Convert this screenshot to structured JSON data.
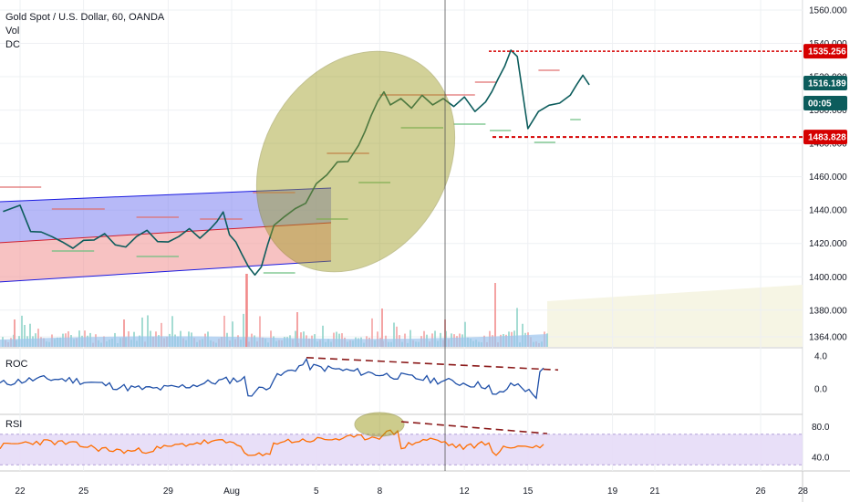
{
  "header": {
    "title": "Gold Spot / U.S. Dollar, 60, OANDA",
    "vol_label": "Vol",
    "dc_label": "DC"
  },
  "panes": {
    "roc_label": "ROC",
    "rsi_label": "RSI"
  },
  "price_tags": {
    "resistance": "1535.256",
    "current": "1516.189",
    "countdown": "00:05",
    "support": "1483.828"
  },
  "colors": {
    "price_line": "#0c5c5c",
    "resistance": "#d50000",
    "current_tag": "#0c5c5c",
    "roc_line": "#1e4fa8",
    "rsi_line": "#ff6d00",
    "channel_upper": "#7b7ff0",
    "channel_lower": "#f29a9a",
    "ellipse": "#9c9a1c"
  },
  "chart_data": [
    {
      "type": "line",
      "title": "Gold Spot / U.S. Dollar, 60, OANDA",
      "y_ticks": [
        1364,
        1380,
        1400,
        1420,
        1440,
        1460,
        1480,
        1500,
        1520,
        1540,
        1560
      ],
      "y_tick_labels": [
        "1364.000",
        "1380.000",
        "1400.000",
        "1420.000",
        "1440.000",
        "1460.000",
        "1480.000",
        "1500.000",
        "1520.000",
        "1540.000",
        "1560.000"
      ],
      "ylim": [
        1358,
        1566
      ],
      "x_ticks": [
        {
          "label": "22",
          "day": 0
        },
        {
          "label": "25",
          "day": 3
        },
        {
          "label": "29",
          "day": 7
        },
        {
          "label": "Aug",
          "day": 10
        },
        {
          "label": "5",
          "day": 14
        },
        {
          "label": "8",
          "day": 17
        },
        {
          "label": "12",
          "day": 21
        },
        {
          "label": "15",
          "day": 24
        },
        {
          "label": "19",
          "day": 28
        },
        {
          "label": "21",
          "day": 30
        },
        {
          "label": "26",
          "day": 35
        },
        {
          "label": "28",
          "day": 37
        }
      ],
      "series": [
        {
          "x": [
            -0.8,
            0,
            0.5,
            1,
            1.5,
            2,
            2.5,
            3,
            3.5,
            4,
            4.5,
            5,
            5.5,
            6,
            6.5,
            7,
            7.5,
            8,
            8.5,
            9,
            9.3,
            9.6,
            9.9,
            10.2,
            10.5,
            10.8,
            11.1,
            11.4,
            11.7,
            12,
            12.5,
            13,
            13.5,
            14,
            14.5,
            15,
            15.5,
            16,
            16.3,
            16.6,
            16.9,
            17.2,
            17.5,
            18,
            18.5,
            19,
            19.5,
            20,
            20.5,
            21,
            21.5,
            22,
            22.3,
            22.6,
            22.9,
            23.2,
            23.5,
            24,
            24.5,
            25,
            25.5,
            26,
            26.3,
            26.6,
            26.9
          ],
          "y": [
            1440,
            1442,
            1428,
            1426,
            1425,
            1420,
            1418,
            1421,
            1423,
            1425,
            1420,
            1417,
            1425,
            1427,
            1422,
            1420,
            1425,
            1428,
            1424,
            1428,
            1434,
            1438,
            1426,
            1420,
            1414,
            1405,
            1402,
            1405,
            1420,
            1430,
            1437,
            1440,
            1445,
            1455,
            1462,
            1468,
            1470,
            1478,
            1488,
            1496,
            1506,
            1510,
            1504,
            1506,
            1502,
            1508,
            1504,
            1506,
            1503,
            1507,
            1500,
            1504,
            1512,
            1518,
            1527,
            1535,
            1533,
            1488,
            1500,
            1502,
            1505,
            1508,
            1516,
            1520,
            1516
          ]
        }
      ],
      "support": 1483.828,
      "resistance": 1535.256,
      "current": 1516.189
    },
    {
      "type": "line",
      "title": "ROC",
      "y_ticks": [
        0,
        4
      ],
      "y_tick_labels": [
        "0.0",
        "4.0"
      ],
      "ylim": [
        -3,
        5
      ]
    },
    {
      "type": "line",
      "title": "RSI",
      "y_ticks": [
        40,
        80
      ],
      "y_tick_labels": [
        "40.0",
        "80.0"
      ],
      "ylim": [
        22,
        96
      ]
    }
  ]
}
